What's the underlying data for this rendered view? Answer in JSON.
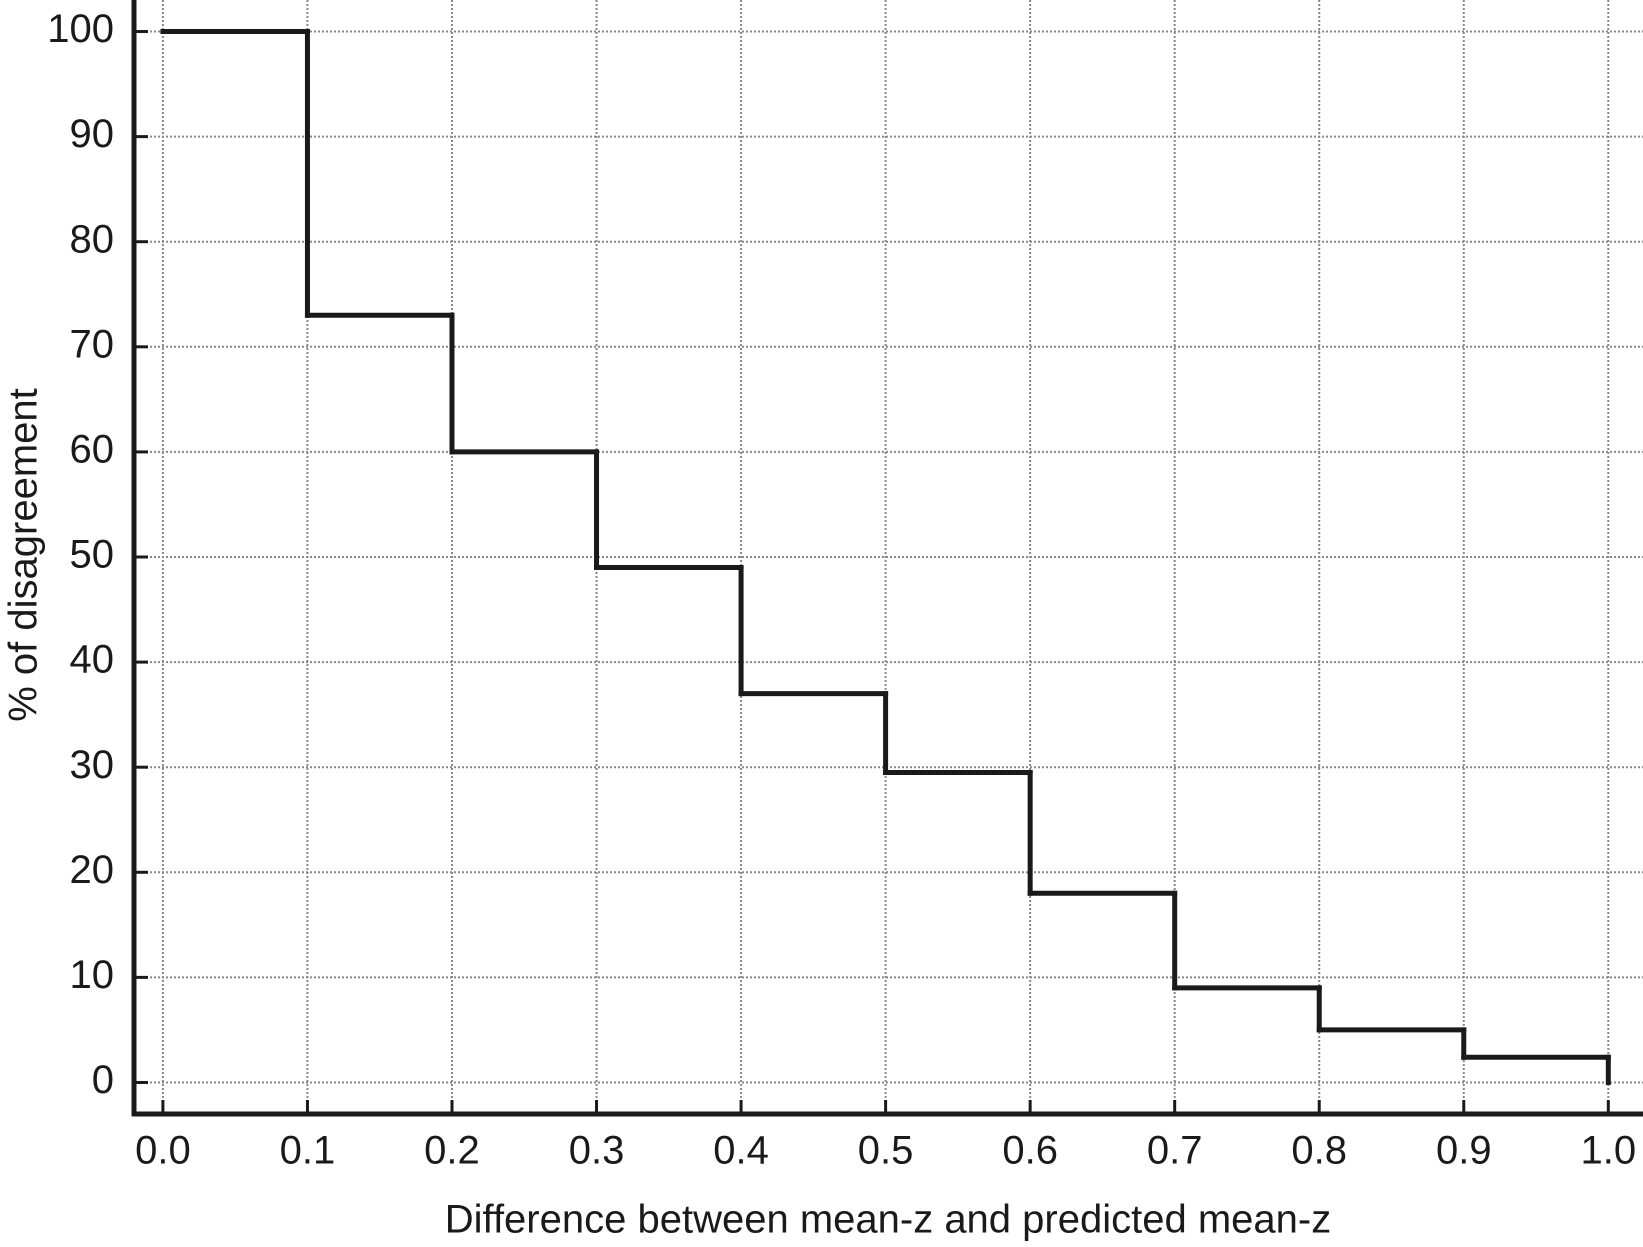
{
  "chart_data": {
    "type": "histogram",
    "x_label": "Difference between mean-z and predicted mean-z",
    "y_label": "% of disagreement",
    "bins": [
      0.0,
      0.1,
      0.2,
      0.3,
      0.4,
      0.5,
      0.6,
      0.7,
      0.8,
      0.9,
      1.0
    ],
    "values": [
      100,
      73,
      60,
      49,
      37,
      29.5,
      18,
      9,
      5,
      2.4
    ],
    "color": "#1a1a1a",
    "xlim": [
      -0.02,
      1.024
    ],
    "ylim": [
      -3,
      103
    ],
    "xticks": [
      {
        "value": 0,
        "label": "0.0"
      },
      0.1,
      0.2,
      0.3,
      0.4,
      0.5,
      0.6,
      0.7,
      0.8,
      0.9,
      {
        "value": 1,
        "label": "1.0"
      }
    ],
    "yticks": [
      0,
      10,
      20,
      30,
      40,
      50,
      60,
      70,
      80,
      90,
      100
    ],
    "grid": true
  }
}
